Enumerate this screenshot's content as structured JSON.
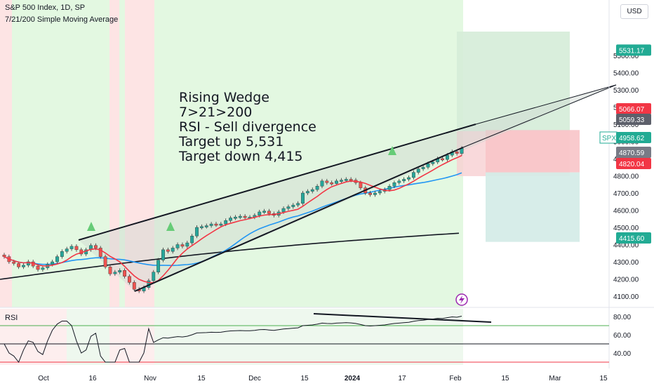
{
  "header": {
    "title": "S&P 500 Index, 1D, SP",
    "subtitle": "7/21/200 Simple Moving Average",
    "currency": "USD"
  },
  "annotation": {
    "lines": [
      "Rising Wedge",
      "7>21>200",
      "RSI - Sell divergence",
      "Target up 5,531",
      "Target down 4,415"
    ]
  },
  "rsi_label": "RSI",
  "colors": {
    "bull": "#26a69a",
    "bear": "#ef5350",
    "sma7": "#f23645",
    "sma21": "#2196f3",
    "sma200": "#131722",
    "green_zone": "#e3f8e1",
    "red_zone": "#fde4e4"
  },
  "chart_data": [
    {
      "type": "candlestick",
      "title": "S&P 500 Index, 1D, SP",
      "y_axis_labels": [
        "5500.00",
        "5400.00",
        "5300.00",
        "5200.00",
        "5100.00",
        "5000.00",
        "4900.00",
        "4800.00",
        "4700.00",
        "4600.00",
        "4500.00",
        "4400.00",
        "4300.00",
        "4200.00",
        "4100.00"
      ],
      "x_axis_labels": [
        "Oct",
        "16",
        "Nov",
        "15",
        "Dec",
        "15",
        "2024",
        "17",
        "Feb",
        "15",
        "Mar",
        "15"
      ],
      "price_tags": [
        {
          "value": "5531.17",
          "color": "#22ab94"
        },
        {
          "value": "5066.07",
          "color": "#f23645"
        },
        {
          "value": "5059.33",
          "color": "#5d606b"
        },
        {
          "label": "SPX",
          "value": "4958.62",
          "color": "#22ab94"
        },
        {
          "value": "4870.59",
          "color": "#787b86"
        },
        {
          "value": "4820.04",
          "color": "#f23645"
        },
        {
          "value": "4415.60",
          "color": "#22ab94"
        }
      ],
      "wedge": {
        "upper": [
          [
            "2023-10-12",
            4385
          ],
          [
            "2024-03-14",
            5230
          ]
        ],
        "lower": [
          [
            "2023-10-27",
            4115
          ],
          [
            "2024-03-14",
            5230
          ]
        ]
      },
      "targets": {
        "entry": 5059.33,
        "target_up": 5531.17,
        "stop": 5066.07,
        "stop_low": 4820.04,
        "target_down": 4415.6
      }
    },
    {
      "type": "line",
      "title": "RSI",
      "y_axis_labels": [
        "80.00",
        "60.00",
        "40.00"
      ],
      "levels": [
        70,
        50,
        30
      ]
    }
  ]
}
